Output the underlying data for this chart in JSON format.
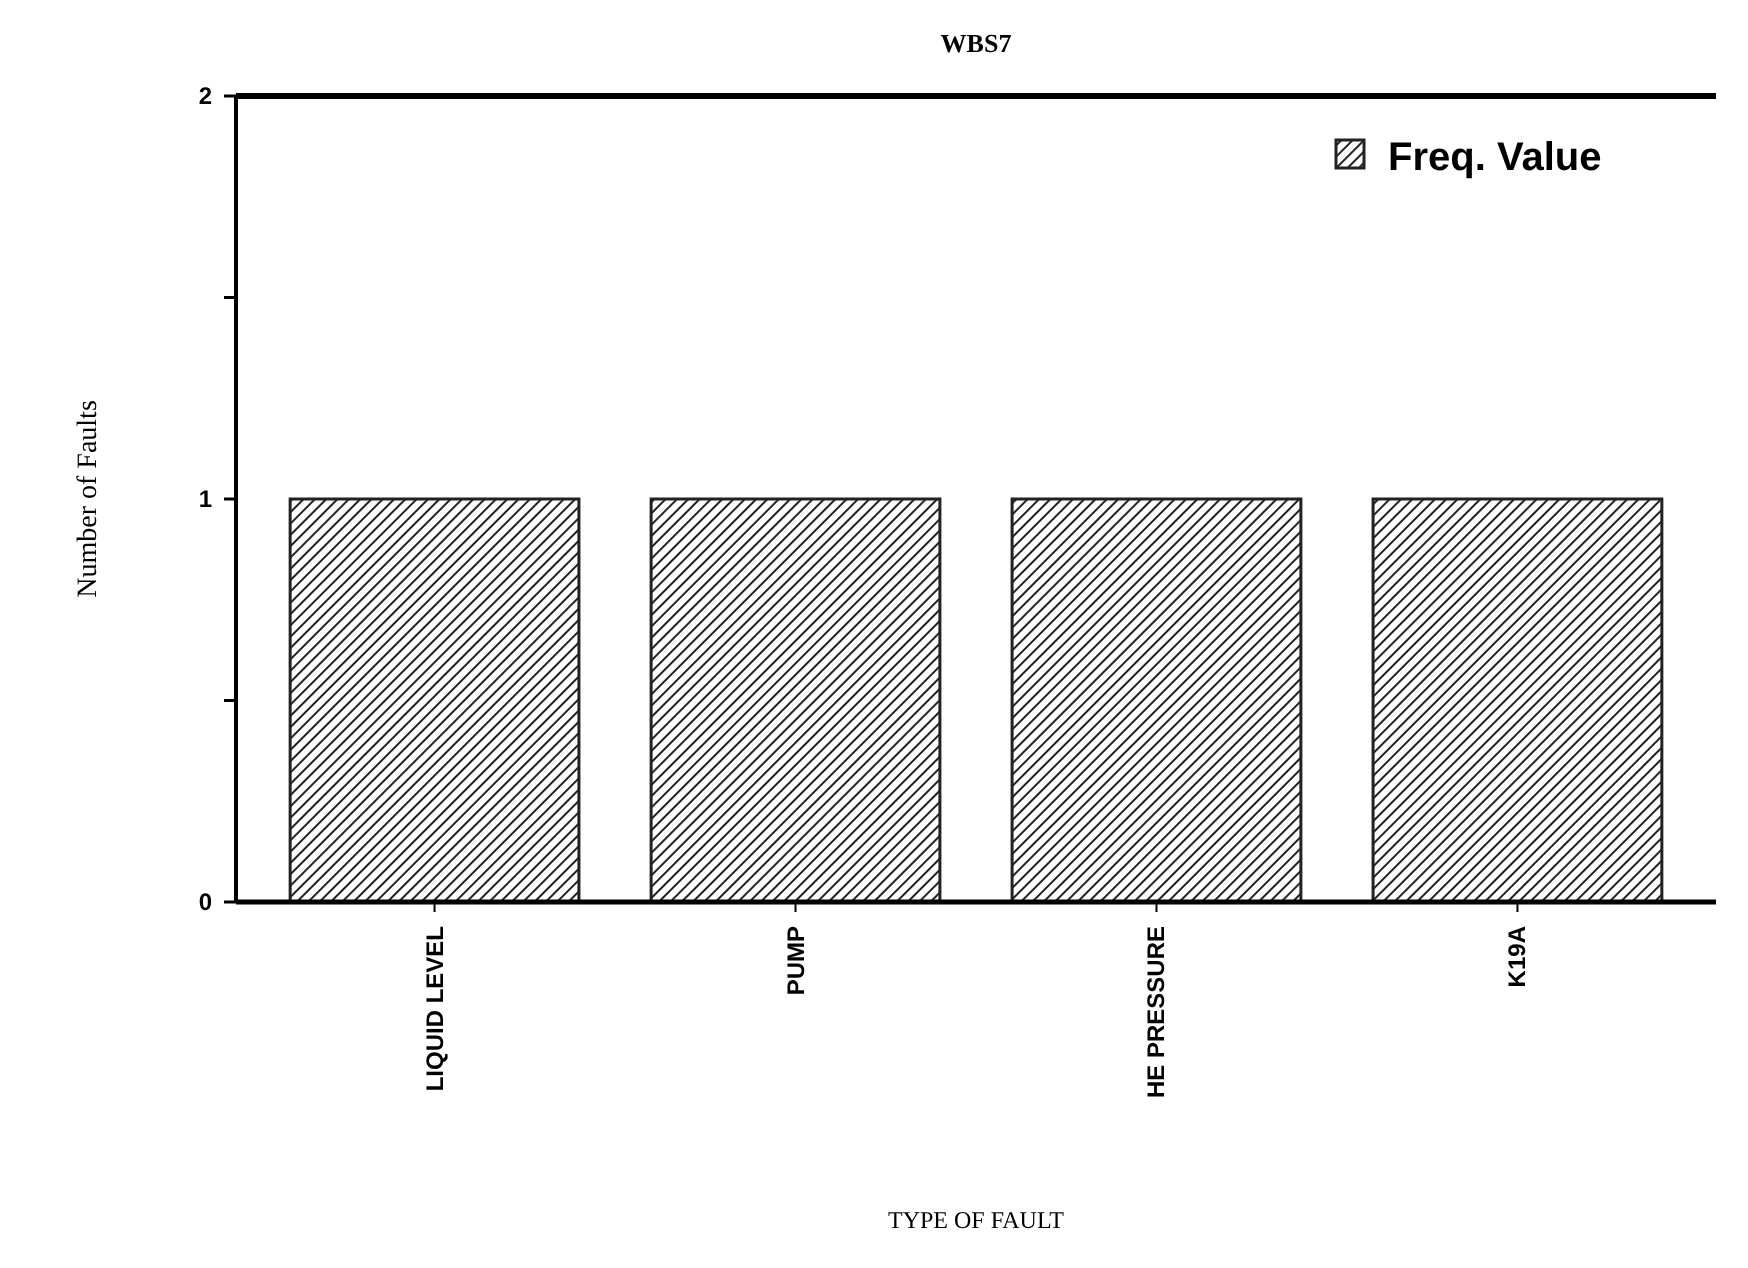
{
  "chart_data": {
    "type": "bar",
    "title": "WBS7",
    "xlabel": "TYPE OF FAULT",
    "ylabel": "Number of Faults",
    "categories": [
      "LIQUID LEVEL",
      "PUMP",
      "HE PRESSURE",
      "K19A"
    ],
    "series": [
      {
        "name": "Freq. Value",
        "color": "#222222",
        "values": [
          1,
          1,
          1,
          1
        ]
      }
    ],
    "ylim": [
      0,
      2
    ],
    "yticks": [
      0,
      {
        "value": 0.5,
        "label": null
      },
      1,
      {
        "value": 1.5,
        "label": null
      },
      2
    ],
    "legend": "top right",
    "grid": false
  }
}
